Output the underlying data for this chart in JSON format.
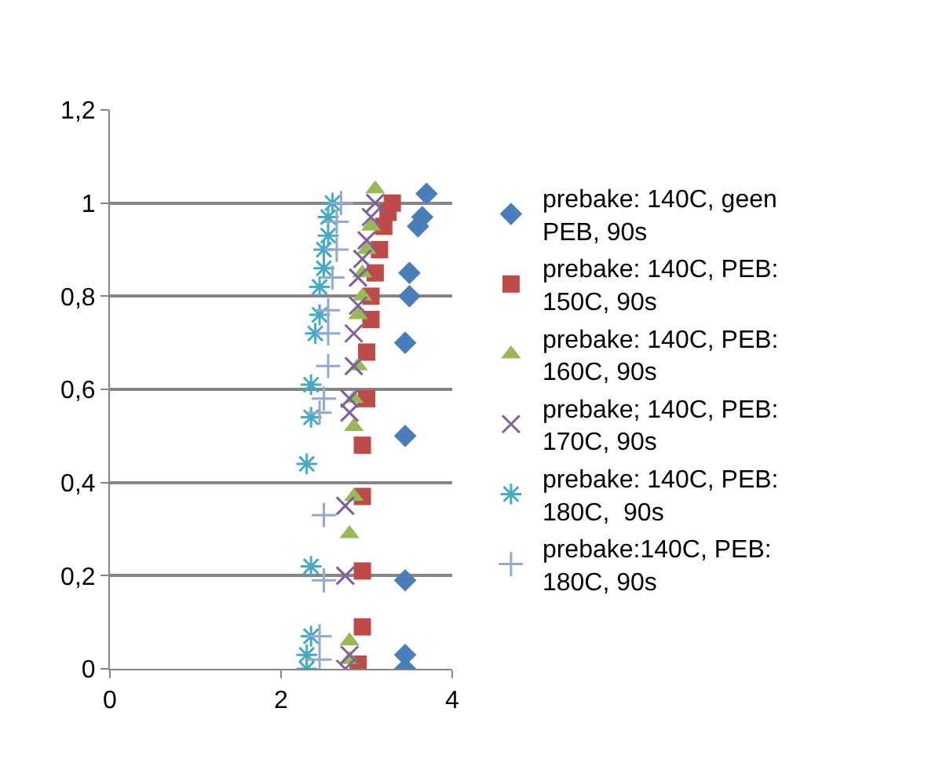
{
  "chart_data": {
    "type": "scatter",
    "xlim": [
      0,
      4
    ],
    "xticks": [
      0,
      2,
      4
    ],
    "ylim": [
      0,
      1.2
    ],
    "yticks": [
      0,
      {
        "value": 0.2,
        "label": "0,2"
      },
      {
        "value": 0.4,
        "label": "0,4"
      },
      {
        "value": 0.6,
        "label": "0,6"
      },
      {
        "value": 0.8,
        "label": "0,8"
      },
      1,
      {
        "value": 1.2,
        "label": "1,2"
      }
    ],
    "grid": "y",
    "legend": "right",
    "series": [
      {
        "name": "prebake: 140C, geen PEB, 90s",
        "color": "#4a7ebb",
        "marker": "diamond",
        "x": [
          3.7,
          3.65,
          3.6,
          3.5,
          3.5,
          3.45,
          3.45,
          3.45,
          3.45,
          3.45
        ],
        "values": [
          1.02,
          0.97,
          0.95,
          0.85,
          0.8,
          0.7,
          0.5,
          0.19,
          0.03,
          0.0
        ]
      },
      {
        "name": "prebake: 140C, PEB: 150C, 90s",
        "color": "#be4b48",
        "marker": "square",
        "x": [
          3.3,
          3.25,
          3.2,
          3.15,
          3.1,
          3.05,
          3.05,
          3.0,
          3.0,
          2.95,
          2.95,
          2.95,
          2.95,
          2.9
        ],
        "values": [
          1.0,
          0.98,
          0.95,
          0.9,
          0.85,
          0.8,
          0.75,
          0.68,
          0.58,
          0.48,
          0.37,
          0.21,
          0.09,
          0.01
        ]
      },
      {
        "name": "prebake: 140C, PEB: 160C, 90s",
        "color": "#98b954",
        "marker": "triangle",
        "x": [
          3.1,
          3.05,
          3.0,
          2.95,
          2.95,
          2.9,
          2.9,
          2.85,
          2.85,
          2.85,
          2.8,
          2.8,
          2.8
        ],
        "values": [
          1.03,
          0.95,
          0.9,
          0.85,
          0.8,
          0.76,
          0.65,
          0.58,
          0.52,
          0.37,
          0.29,
          0.06,
          0.02
        ]
      },
      {
        "name": "prebake; 140C, PEB: 170C, 90s",
        "color": "#7d60a0",
        "marker": "x",
        "x": [
          3.1,
          3.05,
          3.0,
          2.95,
          2.9,
          2.9,
          2.85,
          2.85,
          2.8,
          2.8,
          2.75,
          2.75,
          2.8,
          2.75
        ],
        "values": [
          1.0,
          0.97,
          0.92,
          0.88,
          0.84,
          0.78,
          0.72,
          0.65,
          0.58,
          0.55,
          0.35,
          0.2,
          0.03,
          0.0
        ]
      },
      {
        "name": "prebake: 140C, PEB: 180C,  90s",
        "color": "#46aac5",
        "marker": "cross",
        "x": [
          2.6,
          2.55,
          2.55,
          2.5,
          2.5,
          2.45,
          2.45,
          2.4,
          2.35,
          2.35,
          2.3,
          2.35,
          2.35,
          2.3,
          2.3
        ],
        "values": [
          1.0,
          0.97,
          0.93,
          0.9,
          0.86,
          0.82,
          0.76,
          0.72,
          0.61,
          0.54,
          0.44,
          0.22,
          0.07,
          0.03,
          0.0
        ]
      },
      {
        "name": "prebake:140C, PEB: 180C, 90s",
        "color": "#93a9cf",
        "x": [
          2.7,
          2.65,
          2.65,
          2.6,
          2.55,
          2.55,
          2.55,
          2.5,
          2.45,
          2.5,
          2.5,
          2.45,
          2.45
        ],
        "values": [
          1.0,
          0.96,
          0.9,
          0.84,
          0.77,
          0.72,
          0.65,
          0.58,
          0.55,
          0.33,
          0.19,
          0.07,
          0.02
        ]
      }
    ]
  }
}
